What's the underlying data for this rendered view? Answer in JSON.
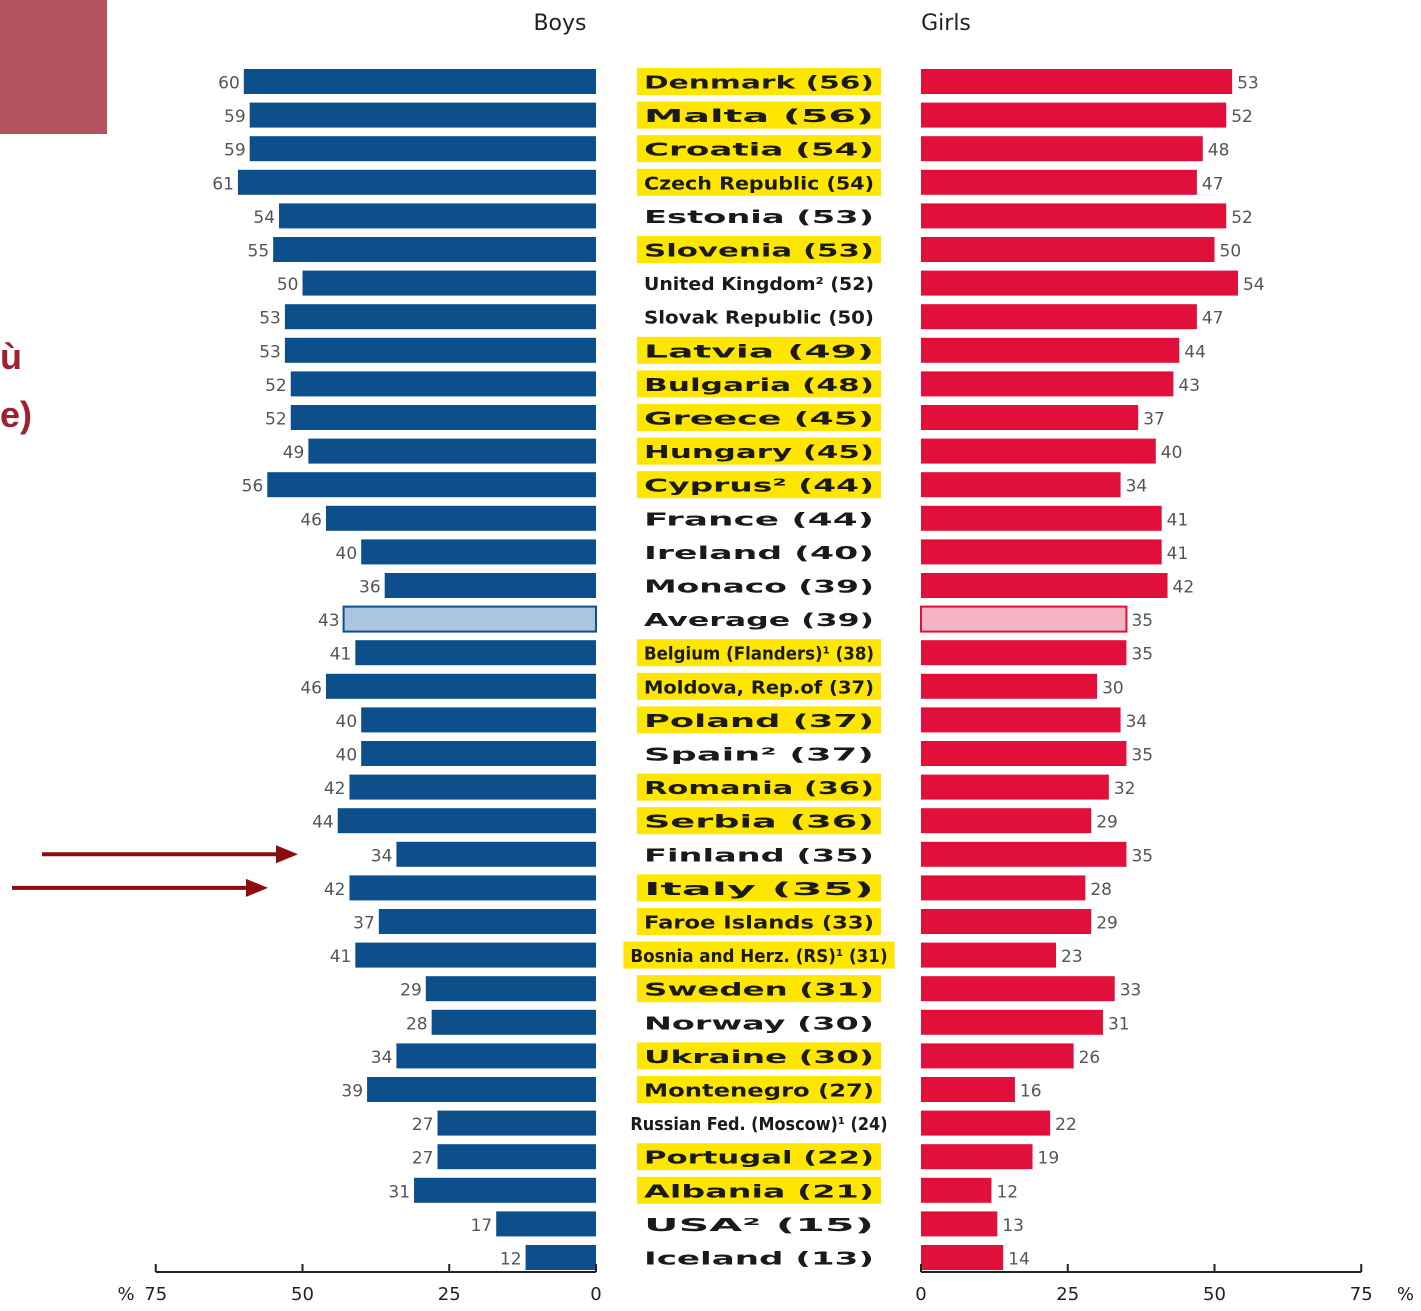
{
  "slide": {
    "accent_box_color": "#b3515e",
    "side_text_line1": "ù",
    "side_text_line2": "e)",
    "side_text_color": "#a02030",
    "arrow_color": "#8b0d0d"
  },
  "chart_data": {
    "type": "bar",
    "subtype": "back-to-back horizontal bar",
    "headers": {
      "left": "Boys",
      "right": "Girls"
    },
    "axis_unit": "%",
    "boys_ticks": [
      "75",
      "50",
      "25",
      "0"
    ],
    "girls_ticks": [
      "0",
      "25",
      "50",
      "75"
    ],
    "xlim": [
      0,
      75
    ],
    "colors": {
      "boys": "#0d4f8b",
      "girls": "#e0103a",
      "boys_average": "#aac4e2",
      "girls_average": "#f4b3c3",
      "label_highlight": "#ffe600"
    },
    "categories": [
      {
        "label": "Denmark (56)",
        "boys": 60,
        "girls": 53,
        "highlight": true
      },
      {
        "label": "Malta (56)",
        "boys": 59,
        "girls": 52,
        "highlight": true
      },
      {
        "label": "Croatia (54)",
        "boys": 59,
        "girls": 48,
        "highlight": true
      },
      {
        "label": "Czech Republic (54)",
        "boys": 61,
        "girls": 47,
        "highlight": true
      },
      {
        "label": "Estonia (53)",
        "boys": 54,
        "girls": 52,
        "highlight": false
      },
      {
        "label": "Slovenia (53)",
        "boys": 55,
        "girls": 50,
        "highlight": true
      },
      {
        "label": "United Kingdom² (52)",
        "boys": 50,
        "girls": 54,
        "highlight": false
      },
      {
        "label": "Slovak Republic (50)",
        "boys": 53,
        "girls": 47,
        "highlight": false
      },
      {
        "label": "Latvia (49)",
        "boys": 53,
        "girls": 44,
        "highlight": true
      },
      {
        "label": "Bulgaria (48)",
        "boys": 52,
        "girls": 43,
        "highlight": true
      },
      {
        "label": "Greece (45)",
        "boys": 52,
        "girls": 37,
        "highlight": true
      },
      {
        "label": "Hungary (45)",
        "boys": 49,
        "girls": 40,
        "highlight": true
      },
      {
        "label": "Cyprus² (44)",
        "boys": 56,
        "girls": 34,
        "highlight": true
      },
      {
        "label": "France (44)",
        "boys": 46,
        "girls": 41,
        "highlight": false
      },
      {
        "label": "Ireland (40)",
        "boys": 40,
        "girls": 41,
        "highlight": false
      },
      {
        "label": "Monaco (39)",
        "boys": 36,
        "girls": 42,
        "highlight": false
      },
      {
        "label": "Average (39)",
        "boys": 43,
        "girls": 35,
        "highlight": false,
        "average": true
      },
      {
        "label": "Belgium (Flanders)¹ (38)",
        "boys": 41,
        "girls": 35,
        "highlight": true
      },
      {
        "label": "Moldova, Rep.of (37)",
        "boys": 46,
        "girls": 30,
        "highlight": true
      },
      {
        "label": "Poland (37)",
        "boys": 40,
        "girls": 34,
        "highlight": true
      },
      {
        "label": "Spain² (37)",
        "boys": 40,
        "girls": 35,
        "highlight": false
      },
      {
        "label": "Romania (36)",
        "boys": 42,
        "girls": 32,
        "highlight": true
      },
      {
        "label": "Serbia (36)",
        "boys": 44,
        "girls": 29,
        "highlight": true
      },
      {
        "label": "Finland (35)",
        "boys": 34,
        "girls": 35,
        "highlight": false,
        "arrow": true
      },
      {
        "label": "Italy (35)",
        "boys": 42,
        "girls": 28,
        "highlight": true,
        "arrow": true
      },
      {
        "label": "Faroe Islands (33)",
        "boys": 37,
        "girls": 29,
        "highlight": true
      },
      {
        "label": "Bosnia and Herz. (RS)¹ (31)",
        "boys": 41,
        "girls": 23,
        "highlight": true
      },
      {
        "label": "Sweden (31)",
        "boys": 29,
        "girls": 33,
        "highlight": true
      },
      {
        "label": "Norway (30)",
        "boys": 28,
        "girls": 31,
        "highlight": false
      },
      {
        "label": "Ukraine (30)",
        "boys": 34,
        "girls": 26,
        "highlight": true
      },
      {
        "label": "Montenegro (27)",
        "boys": 39,
        "girls": 16,
        "highlight": true
      },
      {
        "label": "Russian Fed. (Moscow)¹ (24)",
        "boys": 27,
        "girls": 22,
        "highlight": false
      },
      {
        "label": "Portugal (22)",
        "boys": 27,
        "girls": 19,
        "highlight": true
      },
      {
        "label": "Albania (21)",
        "boys": 31,
        "girls": 12,
        "highlight": true
      },
      {
        "label": "USA² (15)",
        "boys": 17,
        "girls": 13,
        "highlight": false
      },
      {
        "label": "Iceland (13)",
        "boys": 12,
        "girls": 14,
        "highlight": false
      }
    ]
  }
}
